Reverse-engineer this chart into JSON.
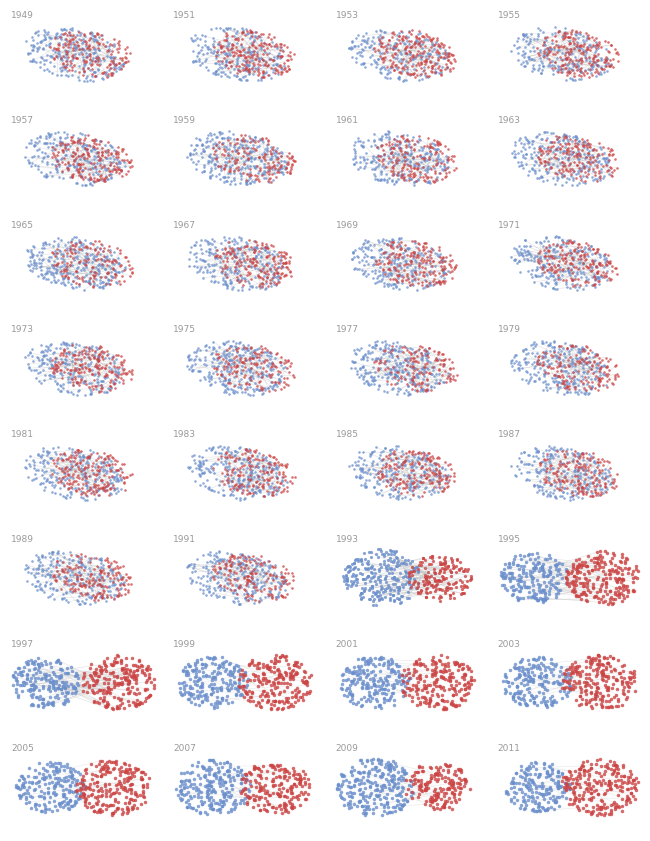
{
  "years": [
    1949,
    1951,
    1953,
    1955,
    1957,
    1959,
    1961,
    1963,
    1965,
    1967,
    1969,
    1971,
    1973,
    1975,
    1977,
    1979,
    1981,
    1983,
    1985,
    1987,
    1989,
    1991,
    1993,
    1995,
    1997,
    1999,
    2001,
    2003,
    2005,
    2007,
    2009,
    2011
  ],
  "dem_seats": [
    263,
    235,
    213,
    232,
    234,
    283,
    262,
    258,
    295,
    248,
    243,
    255,
    242,
    291,
    292,
    277,
    243,
    269,
    253,
    258,
    260,
    267,
    258,
    204,
    206,
    211,
    212,
    205,
    202,
    233,
    257,
    193
  ],
  "rep_seats": [
    171,
    199,
    221,
    203,
    201,
    153,
    174,
    176,
    140,
    187,
    192,
    180,
    192,
    144,
    143,
    158,
    192,
    166,
    182,
    177,
    175,
    167,
    176,
    230,
    228,
    223,
    221,
    229,
    232,
    202,
    178,
    242
  ],
  "background_color": "#ffffff",
  "dem_color": "#6b8fcc",
  "rep_color": "#cc4444",
  "label_color": "#999999",
  "ncols": 4,
  "nrows": 8,
  "dot_size": 3.5,
  "sep_levels": [
    0,
    0,
    0,
    0,
    0,
    0,
    0,
    0,
    0,
    0,
    0,
    0,
    0,
    0,
    0,
    0,
    0,
    0,
    0,
    0,
    0,
    0,
    0.35,
    0.7,
    0.85,
    0.9,
    0.92,
    0.95,
    1.0,
    1.0,
    1.0,
    1.0
  ]
}
